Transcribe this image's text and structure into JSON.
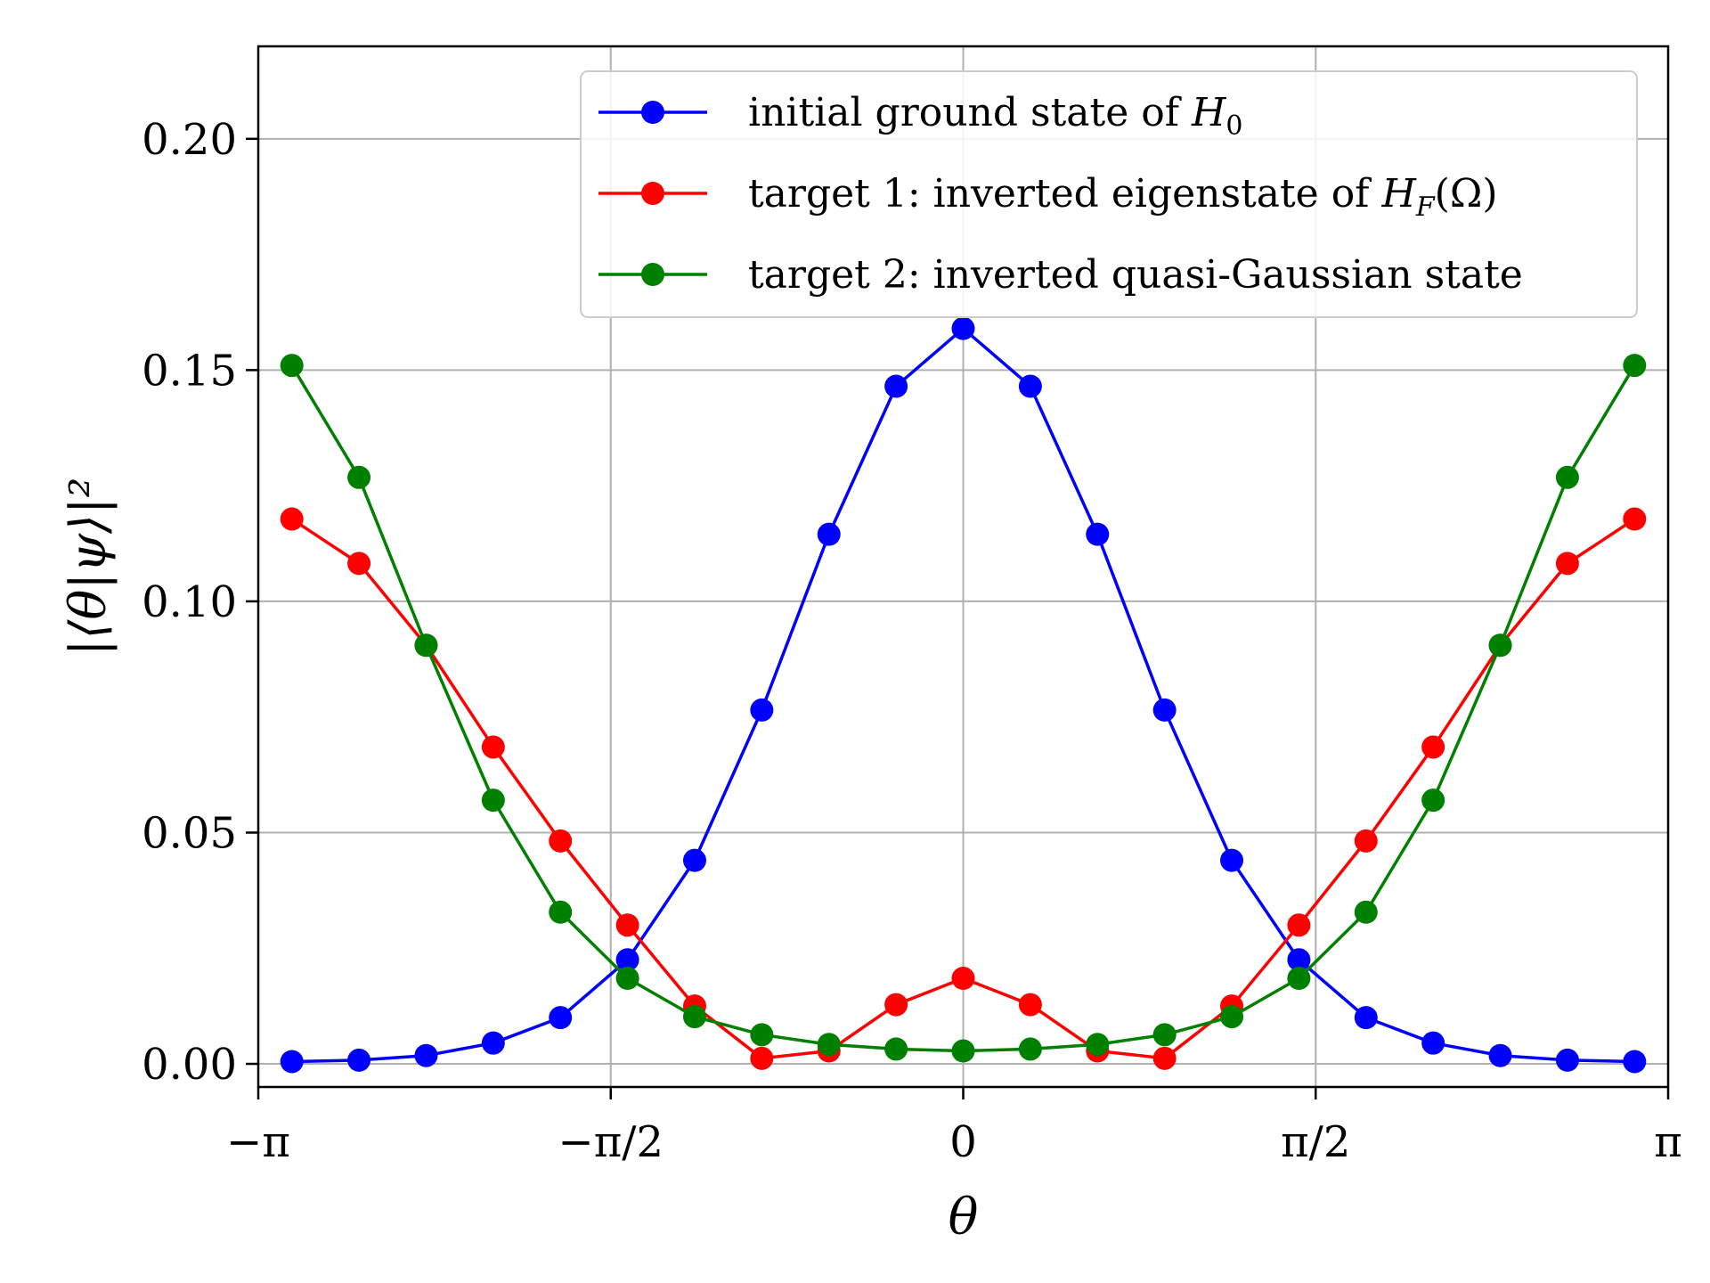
{
  "chart_data": {
    "type": "line",
    "title": "",
    "xlabel": "θ",
    "ylabel": "|⟨θ|ψ⟩|²",
    "xlim": [
      -3.14159,
      3.14159
    ],
    "ylim": [
      -0.005,
      0.22
    ],
    "xticks": [
      {
        "value": -3.14159,
        "label": "−π"
      },
      {
        "value": -1.5708,
        "label": "−π/2"
      },
      {
        "value": 0,
        "label": "0"
      },
      {
        "value": 1.5708,
        "label": "π/2"
      },
      {
        "value": 3.14159,
        "label": "π"
      }
    ],
    "yticks": [
      {
        "value": 0.0,
        "label": "0.00"
      },
      {
        "value": 0.05,
        "label": "0.05"
      },
      {
        "value": 0.1,
        "label": "0.10"
      },
      {
        "value": 0.15,
        "label": "0.15"
      },
      {
        "value": 0.2,
        "label": "0.20"
      }
    ],
    "grid": true,
    "legend_position": "top-right",
    "x": [
      -2.992,
      -2.6928,
      -2.3936,
      -2.0944,
      -1.7952,
      -1.496,
      -1.1968,
      -0.8976,
      -0.5984,
      -0.2992,
      0.0,
      0.2992,
      0.5984,
      0.8976,
      1.1968,
      1.496,
      1.7952,
      2.0944,
      2.3936,
      2.6928,
      2.992
    ],
    "series": [
      {
        "name": "initial ground state of H_0",
        "legend_main": "initial ground state of ",
        "legend_math": "H",
        "legend_sub": "0",
        "legend_tail": "",
        "color": "#0000ff",
        "values": [
          0.0005,
          0.0008,
          0.0018,
          0.0045,
          0.01,
          0.0225,
          0.044,
          0.0765,
          0.1145,
          0.1465,
          0.159,
          0.1465,
          0.1145,
          0.0765,
          0.044,
          0.0225,
          0.01,
          0.0045,
          0.0018,
          0.0008,
          0.0005
        ]
      },
      {
        "name": "target 1: inverted eigenstate of H_F(Ω)",
        "legend_main": "target 1: inverted eigenstate of ",
        "legend_math": "H",
        "legend_sub": "F",
        "legend_tail": "(Ω)",
        "color": "#ff0000",
        "values": [
          0.1178,
          0.1082,
          0.0905,
          0.0685,
          0.0482,
          0.03,
          0.0125,
          0.0012,
          0.0028,
          0.0128,
          0.0185,
          0.0128,
          0.0028,
          0.0012,
          0.0125,
          0.03,
          0.0482,
          0.0685,
          0.0905,
          0.1082,
          0.1178
        ]
      },
      {
        "name": "target 2: inverted quasi-Gaussian state",
        "legend_main": "target 2: inverted quasi-Gaussian state",
        "legend_math": "",
        "legend_sub": "",
        "legend_tail": "",
        "color": "#008000",
        "values": [
          0.151,
          0.1268,
          0.0905,
          0.057,
          0.0328,
          0.0185,
          0.0102,
          0.0063,
          0.0042,
          0.0032,
          0.0028,
          0.0032,
          0.0042,
          0.0063,
          0.0102,
          0.0185,
          0.0328,
          0.057,
          0.0905,
          0.1268,
          0.151
        ]
      }
    ]
  }
}
